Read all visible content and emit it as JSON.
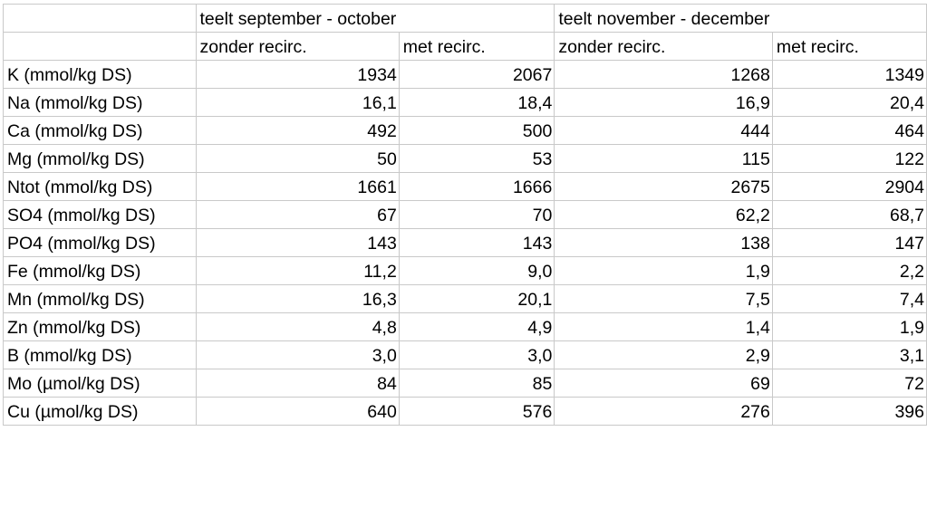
{
  "header": {
    "group_1": "teelt september - october",
    "group_2": "teelt november - december",
    "sub_1": "zonder recirc.",
    "sub_2": "met recirc.",
    "sub_3": "zonder recirc.",
    "sub_4": "met recirc."
  },
  "rows": [
    {
      "label": "K (mmol/kg DS)",
      "v1": "1934",
      "v2": "2067",
      "v3": "1268",
      "v4": "1349"
    },
    {
      "label": "Na (mmol/kg DS)",
      "v1": "16,1",
      "v2": "18,4",
      "v3": "16,9",
      "v4": "20,4"
    },
    {
      "label": "Ca (mmol/kg DS)",
      "v1": "492",
      "v2": "500",
      "v3": "444",
      "v4": "464"
    },
    {
      "label": "Mg (mmol/kg DS)",
      "v1": "50",
      "v2": "53",
      "v3": "115",
      "v4": "122"
    },
    {
      "label": "Ntot (mmol/kg DS)",
      "v1": "1661",
      "v2": "1666",
      "v3": "2675",
      "v4": "2904"
    },
    {
      "label": "SO4 (mmol/kg DS)",
      "v1": "67",
      "v2": "70",
      "v3": "62,2",
      "v4": "68,7"
    },
    {
      "label": "PO4 (mmol/kg DS)",
      "v1": "143",
      "v2": "143",
      "v3": "138",
      "v4": "147"
    },
    {
      "label": "Fe (mmol/kg DS)",
      "v1": "11,2",
      "v2": "9,0",
      "v3": "1,9",
      "v4": "2,2"
    },
    {
      "label": "Mn (mmol/kg DS)",
      "v1": "16,3",
      "v2": "20,1",
      "v3": "7,5",
      "v4": "7,4"
    },
    {
      "label": "Zn (mmol/kg DS)",
      "v1": "4,8",
      "v2": "4,9",
      "v3": "1,4",
      "v4": "1,9"
    },
    {
      "label": "B (mmol/kg DS)",
      "v1": "3,0",
      "v2": "3,0",
      "v3": "2,9",
      "v4": "3,1"
    },
    {
      "label": "Mo (µmol/kg DS)",
      "v1": "84",
      "v2": "85",
      "v3": "69",
      "v4": "72"
    },
    {
      "label": "Cu (µmol/kg DS)",
      "v1": "640",
      "v2": "576",
      "v3": "276",
      "v4": "396"
    }
  ],
  "colors": {
    "grid_line": "#c9c9c9",
    "text": "#000000",
    "background": "#ffffff"
  }
}
